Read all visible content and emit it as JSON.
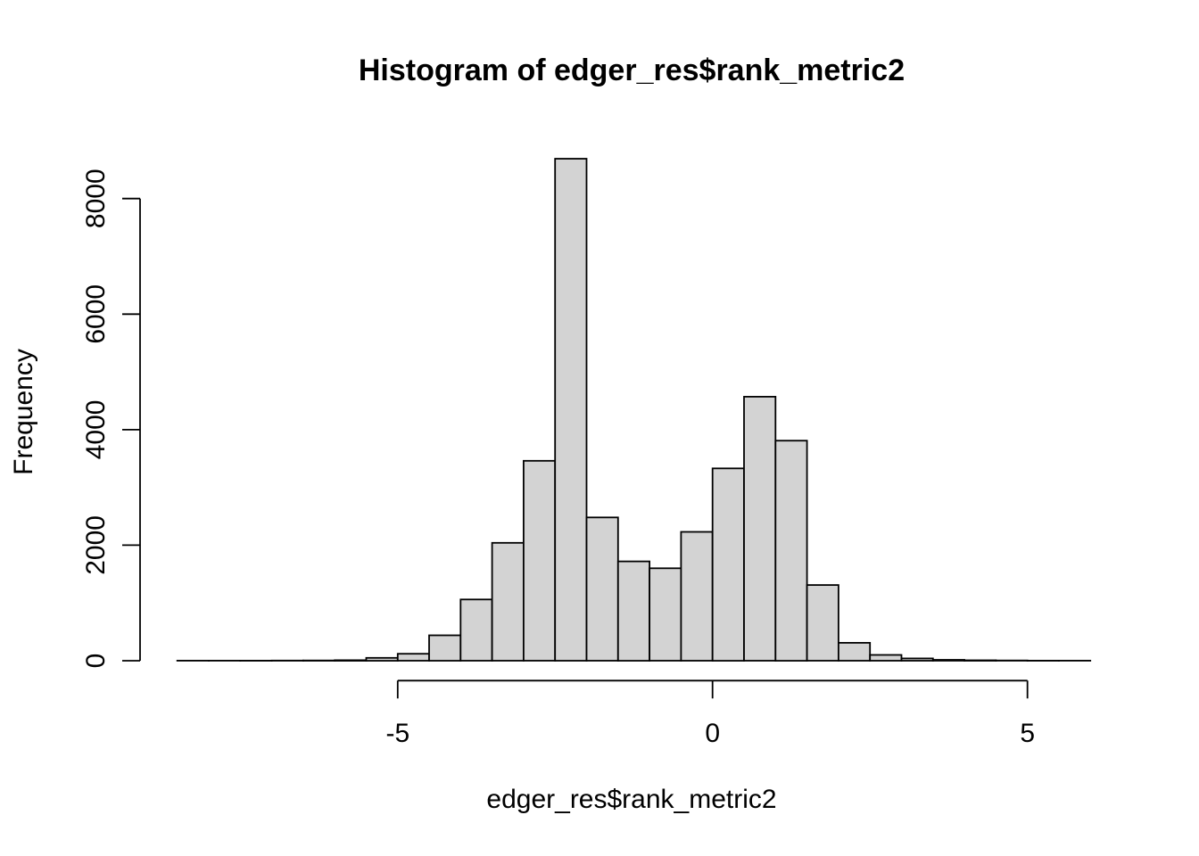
{
  "page": {
    "background": "#FFFFFF"
  },
  "chart_data": {
    "type": "bar",
    "variant": "histogram",
    "title": "Histogram of edger_res$rank_metric2",
    "xlabel": "edger_res$rank_metric2",
    "ylabel": "Frequency",
    "bin_width": 0.5,
    "bin_starts": [
      -8.5,
      -8.0,
      -7.5,
      -7.0,
      -6.5,
      -6.0,
      -5.5,
      -5.0,
      -4.5,
      -4.0,
      -3.5,
      -3.0,
      -2.5,
      -2.0,
      -1.5,
      -1.0,
      -0.5,
      0.0,
      0.5,
      1.0,
      1.5,
      2.0,
      2.5,
      3.0,
      3.5,
      4.0,
      4.5,
      5.0,
      5.5
    ],
    "counts": [
      1,
      1,
      2,
      3,
      5,
      10,
      50,
      120,
      440,
      1060,
      2040,
      3460,
      8690,
      2480,
      1720,
      1600,
      2230,
      3330,
      4570,
      3810,
      1310,
      310,
      100,
      40,
      15,
      8,
      4,
      2,
      1
    ],
    "x_ticks": [
      "-5",
      "0",
      "5"
    ],
    "x_tick_values": [
      -5,
      0,
      5
    ],
    "y_ticks": [
      "0",
      "2000",
      "4000",
      "6000",
      "8000"
    ],
    "y_tick_values": [
      0,
      2000,
      4000,
      6000,
      8000
    ],
    "xlim": [
      -8.5,
      6.0
    ],
    "ylim": [
      0,
      8700
    ],
    "grid": "off",
    "legend": "none",
    "bar_fill": "#D3D3D3",
    "bar_border": "#000000",
    "axis_color": "#000000"
  }
}
